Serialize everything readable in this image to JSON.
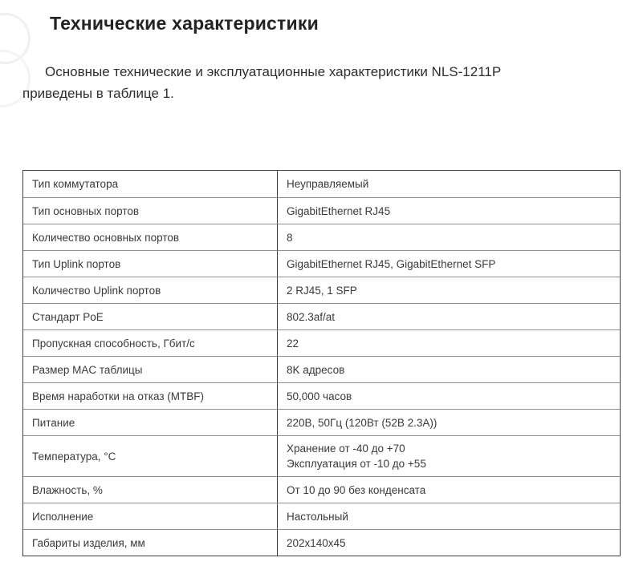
{
  "page": {
    "title": "Технические характеристики",
    "intro": "Основные технические и эксплуатационные характеристики NLS-1211P приведены в таблице 1."
  },
  "table": {
    "rows": [
      {
        "param": "Тип коммутатора",
        "value_lines": [
          "Неуправляемый"
        ]
      },
      {
        "param": "Тип основных портов",
        "value_lines": [
          "GigabitEthernet RJ45"
        ]
      },
      {
        "param": "Количество основных портов",
        "value_lines": [
          "8"
        ]
      },
      {
        "param": "Тип Uplink портов",
        "value_lines": [
          "GigabitEthernet RJ45, GigabitEthernet SFP"
        ]
      },
      {
        "param": "Количество Uplink портов",
        "value_lines": [
          "2 RJ45, 1 SFP"
        ]
      },
      {
        "param": "Стандарт PoE",
        "value_lines": [
          "802.3af/at"
        ]
      },
      {
        "param": "Пропускная способность, Гбит/с",
        "value_lines": [
          "22"
        ]
      },
      {
        "param": "Размер MAC таблицы",
        "value_lines": [
          "8K адресов"
        ]
      },
      {
        "param": "Время наработки на отказ (MTBF)",
        "value_lines": [
          "50,000 часов"
        ]
      },
      {
        "param": "Питание",
        "value_lines": [
          "220В, 50Гц (120Вт (52В 2.3А))"
        ]
      },
      {
        "param": "Температура, °С",
        "value_lines": [
          "Хранение от -40 до +70",
          "Эксплуатация от -10 до +55"
        ]
      },
      {
        "param": "Влажность, %",
        "value_lines": [
          "От 10 до 90 без конденсата"
        ]
      },
      {
        "param": "Исполнение",
        "value_lines": [
          "Настольный"
        ]
      },
      {
        "param": "Габариты изделия, мм",
        "value_lines": [
          "202x140x45"
        ]
      }
    ]
  },
  "colors": {
    "text": "#3a3a3a",
    "heading": "#232323",
    "border_vertical": "#3f3f3f",
    "border_horizontal": "#8f8f8f",
    "background": "#ffffff"
  }
}
